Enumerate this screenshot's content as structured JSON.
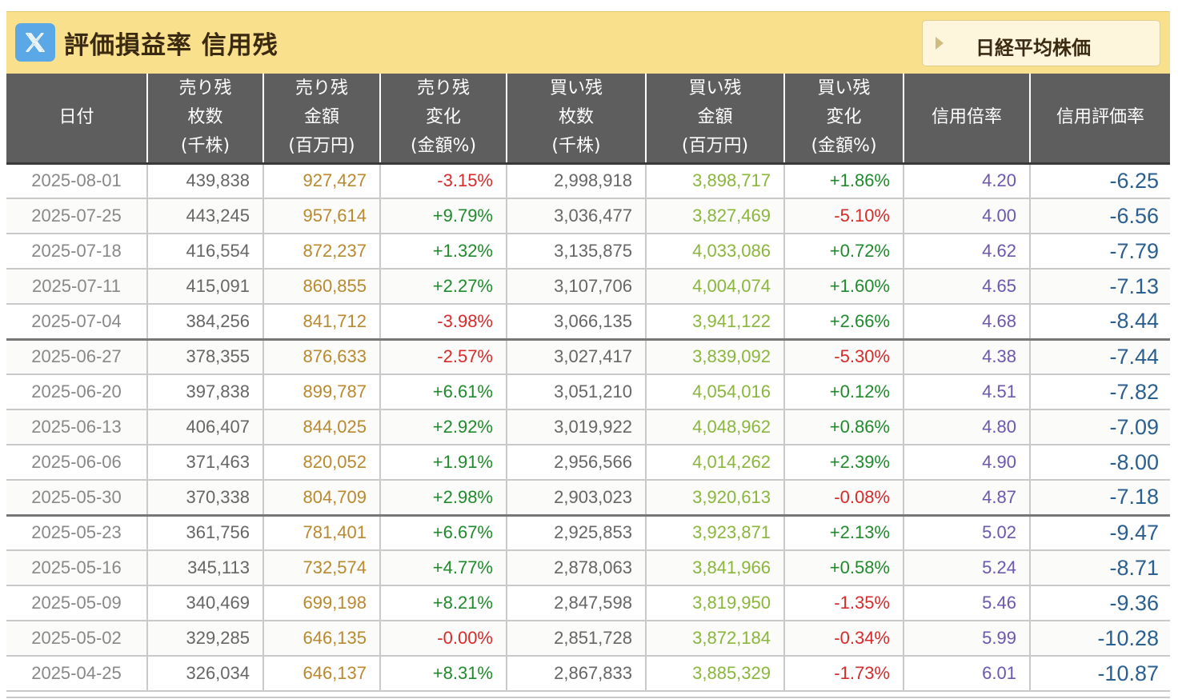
{
  "header": {
    "title": "評価損益率 信用残",
    "nikkei_button": "日経平均株価"
  },
  "columns": [
    {
      "lines": [
        "日付"
      ]
    },
    {
      "lines": [
        "売り残",
        "枚数",
        "(千株)"
      ]
    },
    {
      "lines": [
        "売り残",
        "金額",
        "(百万円)"
      ]
    },
    {
      "lines": [
        "売り残",
        "変化",
        "(金額%)"
      ]
    },
    {
      "lines": [
        "買い残",
        "枚数",
        "(千株)"
      ]
    },
    {
      "lines": [
        "買い残",
        "金額",
        "(百万円)"
      ]
    },
    {
      "lines": [
        "買い残",
        "変化",
        "(金額%)"
      ]
    },
    {
      "lines": [
        "信用倍率"
      ]
    },
    {
      "lines": [
        "信用評価率"
      ]
    }
  ],
  "rows": [
    {
      "date": "2025-08-01",
      "sell_qty": "439,838",
      "sell_amt": "927,427",
      "sell_chg": "-3.15%",
      "buy_qty": "2,998,918",
      "buy_amt": "3,898,717",
      "buy_chg": "+1.86%",
      "ratio": "4.20",
      "eval": "-6.25"
    },
    {
      "date": "2025-07-25",
      "sell_qty": "443,245",
      "sell_amt": "957,614",
      "sell_chg": "+9.79%",
      "buy_qty": "3,036,477",
      "buy_amt": "3,827,469",
      "buy_chg": "-5.10%",
      "ratio": "4.00",
      "eval": "-6.56"
    },
    {
      "date": "2025-07-18",
      "sell_qty": "416,554",
      "sell_amt": "872,237",
      "sell_chg": "+1.32%",
      "buy_qty": "3,135,875",
      "buy_amt": "4,033,086",
      "buy_chg": "+0.72%",
      "ratio": "4.62",
      "eval": "-7.79"
    },
    {
      "date": "2025-07-11",
      "sell_qty": "415,091",
      "sell_amt": "860,855",
      "sell_chg": "+2.27%",
      "buy_qty": "3,107,706",
      "buy_amt": "4,004,074",
      "buy_chg": "+1.60%",
      "ratio": "4.65",
      "eval": "-7.13"
    },
    {
      "date": "2025-07-04",
      "sell_qty": "384,256",
      "sell_amt": "841,712",
      "sell_chg": "-3.98%",
      "buy_qty": "3,066,135",
      "buy_amt": "3,941,122",
      "buy_chg": "+2.66%",
      "ratio": "4.68",
      "eval": "-8.44"
    },
    {
      "date": "2025-06-27",
      "sell_qty": "378,355",
      "sell_amt": "876,633",
      "sell_chg": "-2.57%",
      "buy_qty": "3,027,417",
      "buy_amt": "3,839,092",
      "buy_chg": "-5.30%",
      "ratio": "4.38",
      "eval": "-7.44"
    },
    {
      "date": "2025-06-20",
      "sell_qty": "397,838",
      "sell_amt": "899,787",
      "sell_chg": "+6.61%",
      "buy_qty": "3,051,210",
      "buy_amt": "4,054,016",
      "buy_chg": "+0.12%",
      "ratio": "4.51",
      "eval": "-7.82"
    },
    {
      "date": "2025-06-13",
      "sell_qty": "406,407",
      "sell_amt": "844,025",
      "sell_chg": "+2.92%",
      "buy_qty": "3,019,922",
      "buy_amt": "4,048,962",
      "buy_chg": "+0.86%",
      "ratio": "4.80",
      "eval": "-7.09"
    },
    {
      "date": "2025-06-06",
      "sell_qty": "371,463",
      "sell_amt": "820,052",
      "sell_chg": "+1.91%",
      "buy_qty": "2,956,566",
      "buy_amt": "4,014,262",
      "buy_chg": "+2.39%",
      "ratio": "4.90",
      "eval": "-8.00"
    },
    {
      "date": "2025-05-30",
      "sell_qty": "370,338",
      "sell_amt": "804,709",
      "sell_chg": "+2.98%",
      "buy_qty": "2,903,023",
      "buy_amt": "3,920,613",
      "buy_chg": "-0.08%",
      "ratio": "4.87",
      "eval": "-7.18"
    },
    {
      "date": "2025-05-23",
      "sell_qty": "361,756",
      "sell_amt": "781,401",
      "sell_chg": "+6.67%",
      "buy_qty": "2,925,853",
      "buy_amt": "3,923,871",
      "buy_chg": "+2.13%",
      "ratio": "5.02",
      "eval": "-9.47"
    },
    {
      "date": "2025-05-16",
      "sell_qty": "345,113",
      "sell_amt": "732,574",
      "sell_chg": "+4.77%",
      "buy_qty": "2,878,063",
      "buy_amt": "3,841,966",
      "buy_chg": "+0.58%",
      "ratio": "5.24",
      "eval": "-8.71"
    },
    {
      "date": "2025-05-09",
      "sell_qty": "340,469",
      "sell_amt": "699,198",
      "sell_chg": "+8.21%",
      "buy_qty": "2,847,598",
      "buy_amt": "3,819,950",
      "buy_chg": "-1.35%",
      "ratio": "5.46",
      "eval": "-9.36"
    },
    {
      "date": "2025-05-02",
      "sell_qty": "329,285",
      "sell_amt": "646,135",
      "sell_chg": "-0.00%",
      "buy_qty": "2,851,728",
      "buy_amt": "3,872,184",
      "buy_chg": "-0.34%",
      "ratio": "5.99",
      "eval": "-10.28"
    },
    {
      "date": "2025-04-25",
      "sell_qty": "326,034",
      "sell_amt": "646,137",
      "sell_chg": "+8.31%",
      "buy_qty": "2,867,833",
      "buy_amt": "3,885,329",
      "buy_chg": "-1.73%",
      "ratio": "6.01",
      "eval": "-10.87"
    }
  ],
  "colors": {
    "title_bar": "#f9e08d",
    "header_bg": "#5e5e5e",
    "positive": "#1f8a2c",
    "negative": "#d62b2b",
    "sell_amount": "#b8892e",
    "buy_amount": "#8ab63c",
    "ratio": "#6b57b0",
    "eval_rate": "#2a5f8f"
  },
  "icons": {
    "share": "x-logo-icon",
    "nikkei_button": "triangle-right-icon"
  }
}
